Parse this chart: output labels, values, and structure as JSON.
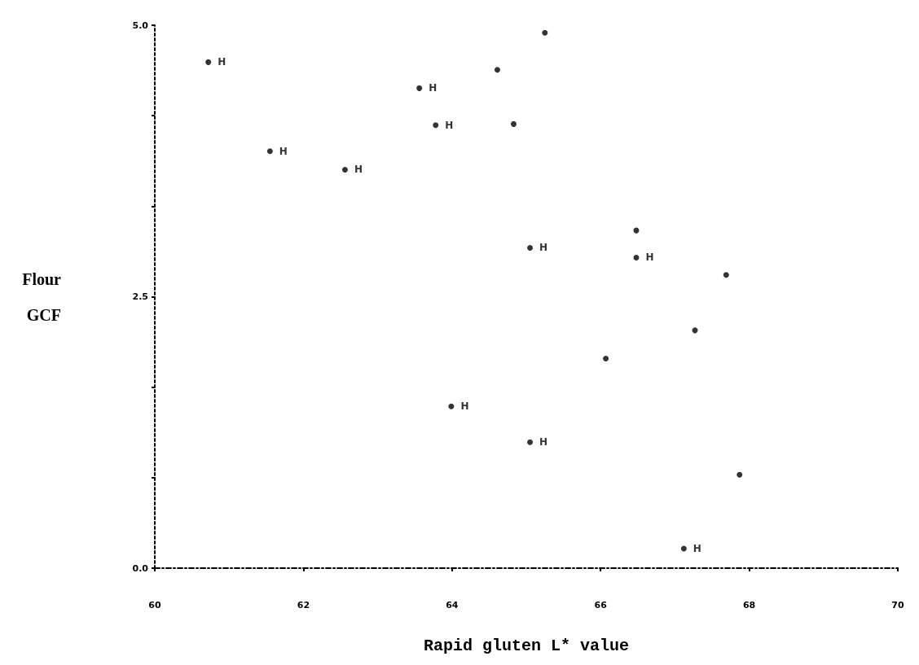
{
  "chart_data": {
    "type": "scatter",
    "xlabel": "Rapid gluten L* value",
    "ylabel": "Flour\nGCF",
    "xlim": [
      60,
      70
    ],
    "xticks": [
      60,
      62,
      64,
      66,
      68,
      70
    ],
    "ylim": [
      0,
      5
    ],
    "yticks": [
      {
        "value": 0,
        "label": "0.0"
      },
      {
        "value": 0.8333,
        "label": null
      },
      {
        "value": 1.6667,
        "label": null
      },
      {
        "value": 2.5,
        "label": "2.5"
      },
      {
        "value": 3.3333,
        "label": null
      },
      {
        "value": 4.1667,
        "label": null
      },
      {
        "value": 5,
        "label": "5.0"
      }
    ],
    "grid": false,
    "marker": "circle",
    "series": [
      {
        "color": "#000000",
        "x": [
          65.25,
          64.61,
          64.83,
          66.48,
          67.69,
          67.27,
          66.07,
          67.87
        ],
        "values": [
          4.93,
          4.59,
          4.09,
          3.11,
          2.7,
          2.19,
          1.93,
          0.86
        ]
      },
      {
        "color": "#000000",
        "x": [
          60.72,
          61.55,
          62.56,
          63.56,
          63.78,
          63.99,
          65.05,
          65.05,
          66.48,
          67.12
        ],
        "values": [
          4.66,
          3.84,
          3.67,
          4.42,
          4.08,
          1.49,
          2.95,
          1.16,
          2.86,
          0.18
        ],
        "value_labels": [
          "H",
          "H",
          "H",
          "H",
          "H",
          "H",
          "H",
          "H",
          "H",
          "H"
        ]
      }
    ]
  }
}
